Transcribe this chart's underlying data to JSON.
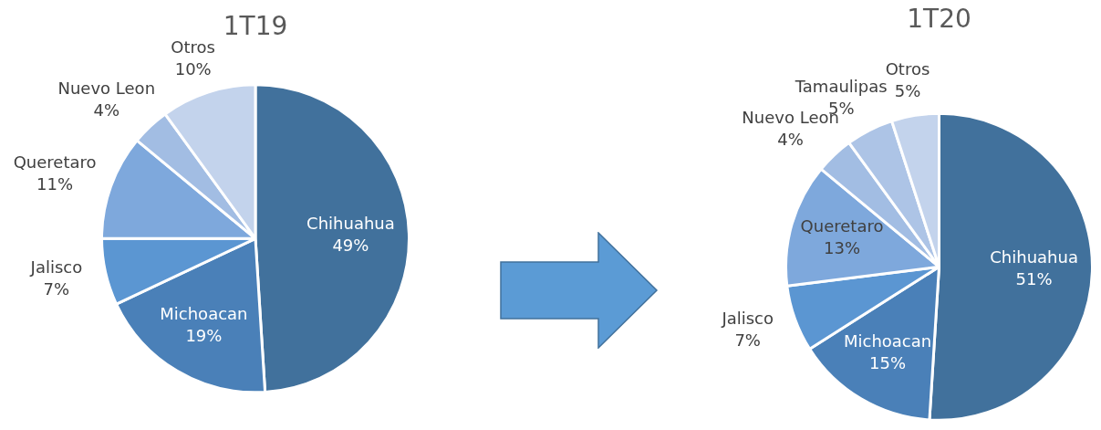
{
  "chart_data": [
    {
      "type": "pie",
      "title": "1T19",
      "categories": [
        "Chihuahua",
        "Michoacan",
        "Jalisco",
        "Queretaro",
        "Nuevo Leon",
        "Otros"
      ],
      "values": [
        49,
        19,
        7,
        11,
        4,
        10
      ],
      "value_labels": [
        "49%",
        "19%",
        "7%",
        "11%",
        "4%",
        "10%"
      ],
      "colors": [
        "#41719c",
        "#4a80b8",
        "#5b96d2",
        "#7ea8dc",
        "#a2bde3",
        "#c3d3ec"
      ],
      "legend": false
    },
    {
      "type": "pie",
      "title": "1T20",
      "categories": [
        "Chihuahua",
        "Michoacan",
        "Jalisco",
        "Queretaro",
        "Nuevo Leon",
        "Tamaulipas",
        "Otros"
      ],
      "values": [
        51,
        15,
        7,
        13,
        4,
        5,
        5
      ],
      "value_labels": [
        "51%",
        "15%",
        "7%",
        "13%",
        "4%",
        "5%",
        "5%"
      ],
      "colors": [
        "#41719c",
        "#4a80b8",
        "#5b96d2",
        "#7ea8dc",
        "#a2bde3",
        "#adc4e6",
        "#c3d3ec"
      ],
      "legend": false
    }
  ]
}
